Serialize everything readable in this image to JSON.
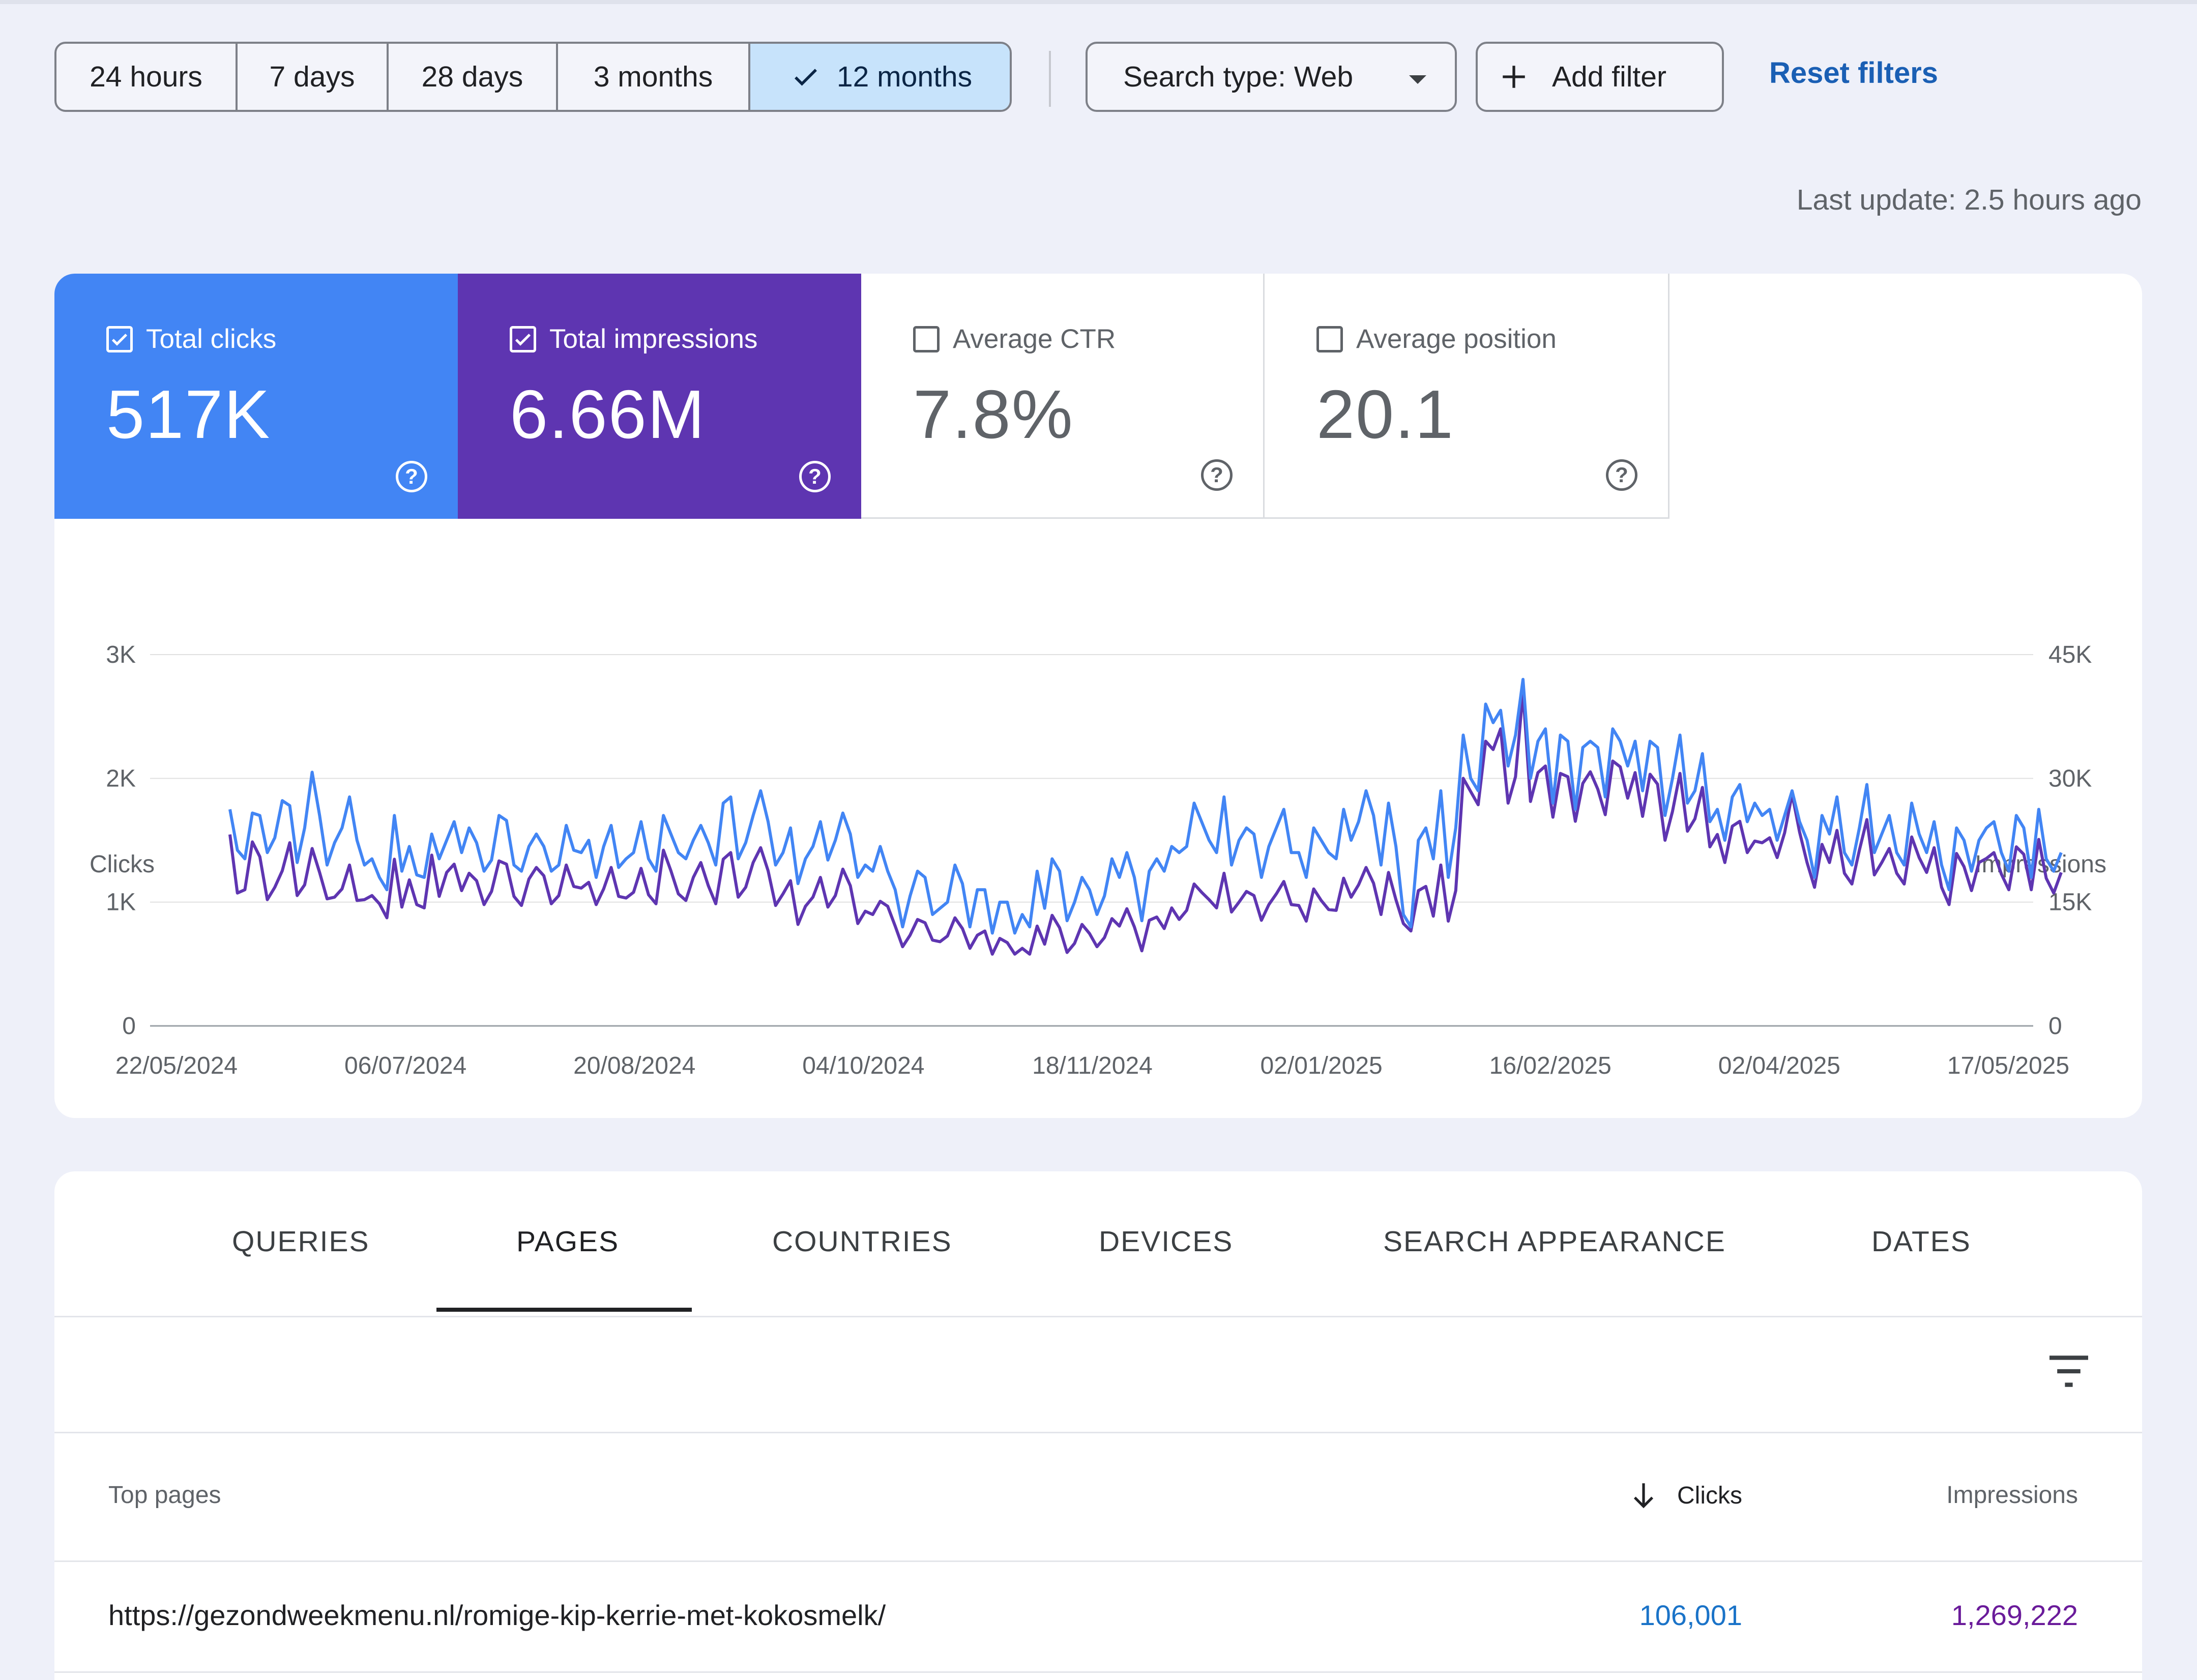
{
  "filters": {
    "ranges": [
      "24 hours",
      "7 days",
      "28 days",
      "3 months",
      "12 months"
    ],
    "active_range": "12 months",
    "search_type": "Search type: Web",
    "add_filter": "Add filter",
    "reset": "Reset filters",
    "last_update": "Last update: 2.5 hours ago"
  },
  "metrics": [
    {
      "label": "Total clicks",
      "value": "517K",
      "checked": true,
      "color": "#4285f4"
    },
    {
      "label": "Total impressions",
      "value": "6.66M",
      "checked": true,
      "color": "#5e35b1"
    },
    {
      "label": "Average CTR",
      "value": "7.8%",
      "checked": false
    },
    {
      "label": "Average position",
      "value": "20.1",
      "checked": false
    }
  ],
  "chart_data": {
    "type": "line",
    "ylabel_left": "Clicks",
    "ylabel_right": "Impressions",
    "yticks_left": [
      "0",
      "1K",
      "2K",
      "3K"
    ],
    "yticks_right": [
      "0",
      "15K",
      "30K",
      "45K"
    ],
    "ylim_left": [
      0,
      3000
    ],
    "ylim_right": [
      0,
      45000
    ],
    "x_ticks": [
      "22/05/2024",
      "06/07/2024",
      "20/08/2024",
      "04/10/2024",
      "18/11/2024",
      "02/01/2025",
      "16/02/2025",
      "02/04/2025",
      "17/05/2025"
    ],
    "x_start": "2024-05-22",
    "grid": true,
    "series": [
      {
        "name": "Clicks",
        "axis": "left",
        "color": "#4285f4",
        "values": [
          1750,
          1420,
          1350,
          1720,
          1700,
          1400,
          1520,
          1820,
          1780,
          1320,
          1600,
          2050,
          1700,
          1300,
          1480,
          1600,
          1850,
          1500,
          1300,
          1350,
          1200,
          1100,
          1700,
          1250,
          1450,
          1220,
          1200,
          1550,
          1350,
          1500,
          1650,
          1400,
          1600,
          1480,
          1250,
          1340,
          1700,
          1660,
          1300,
          1250,
          1450,
          1550,
          1450,
          1250,
          1300,
          1620,
          1420,
          1400,
          1500,
          1200,
          1450,
          1620,
          1280,
          1350,
          1400,
          1650,
          1350,
          1250,
          1700,
          1550,
          1400,
          1350,
          1500,
          1620,
          1480,
          1300,
          1800,
          1850,
          1350,
          1480,
          1700,
          1900,
          1650,
          1300,
          1400,
          1600,
          1150,
          1350,
          1450,
          1650,
          1340,
          1500,
          1720,
          1550,
          1200,
          1300,
          1250,
          1450,
          1250,
          1100,
          800,
          1050,
          1250,
          1200,
          900,
          950,
          1000,
          1300,
          1150,
          800,
          1100,
          1100,
          750,
          1000,
          1000,
          750,
          900,
          800,
          1250,
          950,
          1350,
          1250,
          850,
          1000,
          1200,
          1100,
          900,
          1050,
          1350,
          1200,
          1400,
          1200,
          850,
          1250,
          1350,
          1250,
          1450,
          1400,
          1450,
          1800,
          1650,
          1500,
          1400,
          1850,
          1300,
          1500,
          1600,
          1550,
          1200,
          1450,
          1600,
          1750,
          1400,
          1400,
          1200,
          1600,
          1500,
          1400,
          1350,
          1750,
          1500,
          1650,
          1900,
          1700,
          1300,
          1800,
          1450,
          900,
          800,
          1500,
          1600,
          1350,
          1900,
          1200,
          1600,
          2350,
          2000,
          1900,
          2600,
          2450,
          2550,
          2100,
          2350,
          2800,
          2000,
          2300,
          2400,
          1800,
          2350,
          2300,
          1750,
          2250,
          2300,
          2250,
          1850,
          2400,
          2300,
          2100,
          2300,
          1900,
          2300,
          2250,
          1700,
          2000,
          2350,
          1800,
          1900,
          2200,
          1650,
          1750,
          1500,
          1850,
          1950,
          1650,
          1800,
          1700,
          1750,
          1500,
          1700,
          1900,
          1650,
          1500,
          1200,
          1700,
          1550,
          1850,
          1400,
          1300,
          1600,
          1950,
          1400,
          1550,
          1700,
          1400,
          1300,
          1800,
          1550,
          1400,
          1650,
          1300,
          1100,
          1600,
          1500,
          1250,
          1500,
          1600,
          1650,
          1400,
          1250,
          1700,
          1600,
          1200,
          1750,
          1350,
          1250,
          1400
        ]
      },
      {
        "name": "Impressions",
        "axis": "right",
        "color": "#5e35b1",
        "values": [
          23200,
          16100,
          16500,
          22300,
          20500,
          15300,
          16800,
          18800,
          22200,
          15800,
          17100,
          21500,
          18600,
          15400,
          15600,
          16600,
          19500,
          15200,
          15300,
          15800,
          14800,
          13100,
          20200,
          14400,
          17700,
          14700,
          14300,
          20700,
          15700,
          18600,
          19600,
          16400,
          18500,
          17600,
          14700,
          16300,
          20000,
          19600,
          15700,
          14600,
          17800,
          19200,
          18200,
          14800,
          15800,
          19500,
          16900,
          16700,
          17400,
          14700,
          16600,
          19200,
          15700,
          15500,
          16200,
          19100,
          15900,
          14800,
          21300,
          18800,
          16000,
          15200,
          18000,
          19800,
          17000,
          14800,
          20200,
          21000,
          15600,
          16800,
          19800,
          21600,
          18800,
          14600,
          16000,
          17600,
          12300,
          14500,
          15600,
          18000,
          14400,
          15800,
          19000,
          17000,
          12400,
          13900,
          13500,
          15100,
          14500,
          12100,
          9600,
          11000,
          12900,
          12500,
          10400,
          10200,
          10900,
          13100,
          11800,
          9400,
          11000,
          11500,
          8700,
          10600,
          10100,
          8700,
          9400,
          8700,
          12100,
          9900,
          13400,
          11900,
          8900,
          10000,
          12300,
          11200,
          9600,
          10700,
          13000,
          12100,
          14200,
          12000,
          9100,
          12800,
          13200,
          11800,
          14300,
          12900,
          14000,
          17200,
          16200,
          15300,
          14300,
          18500,
          13800,
          15000,
          16300,
          15800,
          12800,
          14700,
          16000,
          17500,
          14700,
          14600,
          12700,
          16600,
          15200,
          14100,
          14000,
          17900,
          15600,
          17100,
          19200,
          17300,
          13500,
          18600,
          15300,
          12400,
          11500,
          16400,
          16900,
          13300,
          19500,
          12700,
          16400,
          30000,
          28400,
          26800,
          34500,
          33500,
          36000,
          27000,
          30200,
          40500,
          27200,
          30700,
          31500,
          25300,
          30600,
          30200,
          24800,
          29400,
          30800,
          28700,
          25600,
          32100,
          31400,
          27600,
          30700,
          25400,
          30500,
          29300,
          22500,
          26000,
          30600,
          23600,
          25100,
          28900,
          21700,
          23200,
          19800,
          24200,
          24800,
          21000,
          22400,
          22200,
          22800,
          20400,
          23400,
          28100,
          23500,
          19800,
          16800,
          22000,
          19800,
          23700,
          18500,
          17200,
          21300,
          25000,
          18300,
          19800,
          21500,
          18500,
          17200,
          22900,
          20400,
          18600,
          21600,
          16800,
          14700,
          20900,
          19300,
          16400,
          19800,
          20300,
          21000,
          18400,
          16500,
          21700,
          20800,
          16500,
          22600,
          17900,
          16100,
          18600
        ]
      }
    ]
  },
  "tabs": [
    "QUERIES",
    "PAGES",
    "COUNTRIES",
    "DEVICES",
    "SEARCH APPEARANCE",
    "DATES"
  ],
  "active_tab": "PAGES",
  "table": {
    "headers": {
      "page": "Top pages",
      "clicks": "Clicks",
      "impressions": "Impressions"
    },
    "rows": [
      {
        "page": "https://gezondweekmenu.nl/romige-kip-kerrie-met-kokosmelk/",
        "clicks": "106,001",
        "impressions": "1,269,222"
      }
    ]
  },
  "icons": [
    "check-icon",
    "dropdown-caret-icon",
    "plus-icon",
    "checkbox-icon",
    "help-icon",
    "filter-icon",
    "sort-down-arrow-icon"
  ]
}
